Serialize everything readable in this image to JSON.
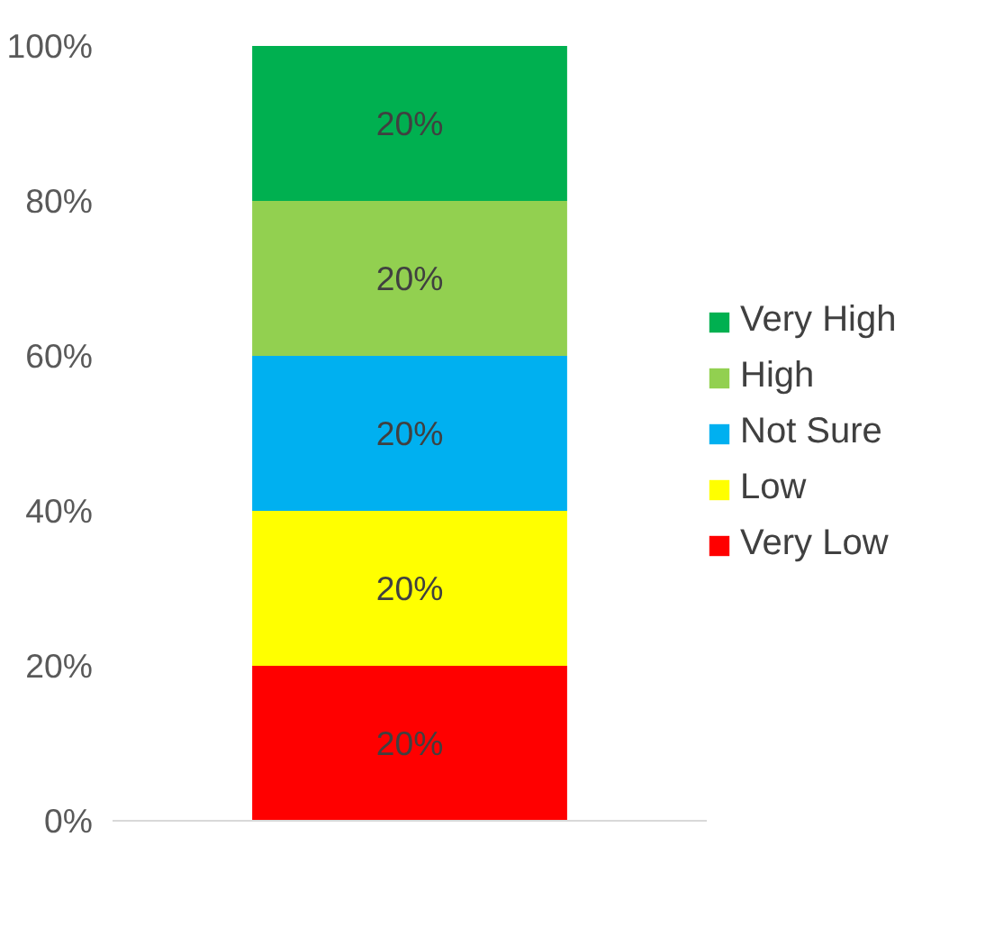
{
  "chart_data": {
    "type": "bar",
    "stacked": true,
    "categories": [
      null
    ],
    "series": [
      {
        "name": "Very Low",
        "color": "#ff0000",
        "values": [
          20
        ],
        "value_labels": [
          "20%"
        ]
      },
      {
        "name": "Low",
        "color": "#ffff00",
        "values": [
          20
        ],
        "value_labels": [
          "20%"
        ]
      },
      {
        "name": "Not Sure",
        "color": "#00b0f0",
        "values": [
          20
        ],
        "value_labels": [
          "20%"
        ]
      },
      {
        "name": "High",
        "color": "#92d050",
        "values": [
          20
        ],
        "value_labels": [
          "20%"
        ]
      },
      {
        "name": "Very High",
        "color": "#00b050",
        "values": [
          20
        ],
        "value_labels": [
          "20%"
        ]
      }
    ],
    "ylim": [
      0,
      100
    ],
    "yticks": [
      {
        "value": 0,
        "label": "0%"
      },
      {
        "value": 20,
        "label": "20%"
      },
      {
        "value": 40,
        "label": "40%"
      },
      {
        "value": 60,
        "label": "60%"
      },
      {
        "value": 80,
        "label": "80%"
      },
      {
        "value": 100,
        "label": "100%"
      }
    ],
    "grid": false,
    "legend": "right"
  }
}
